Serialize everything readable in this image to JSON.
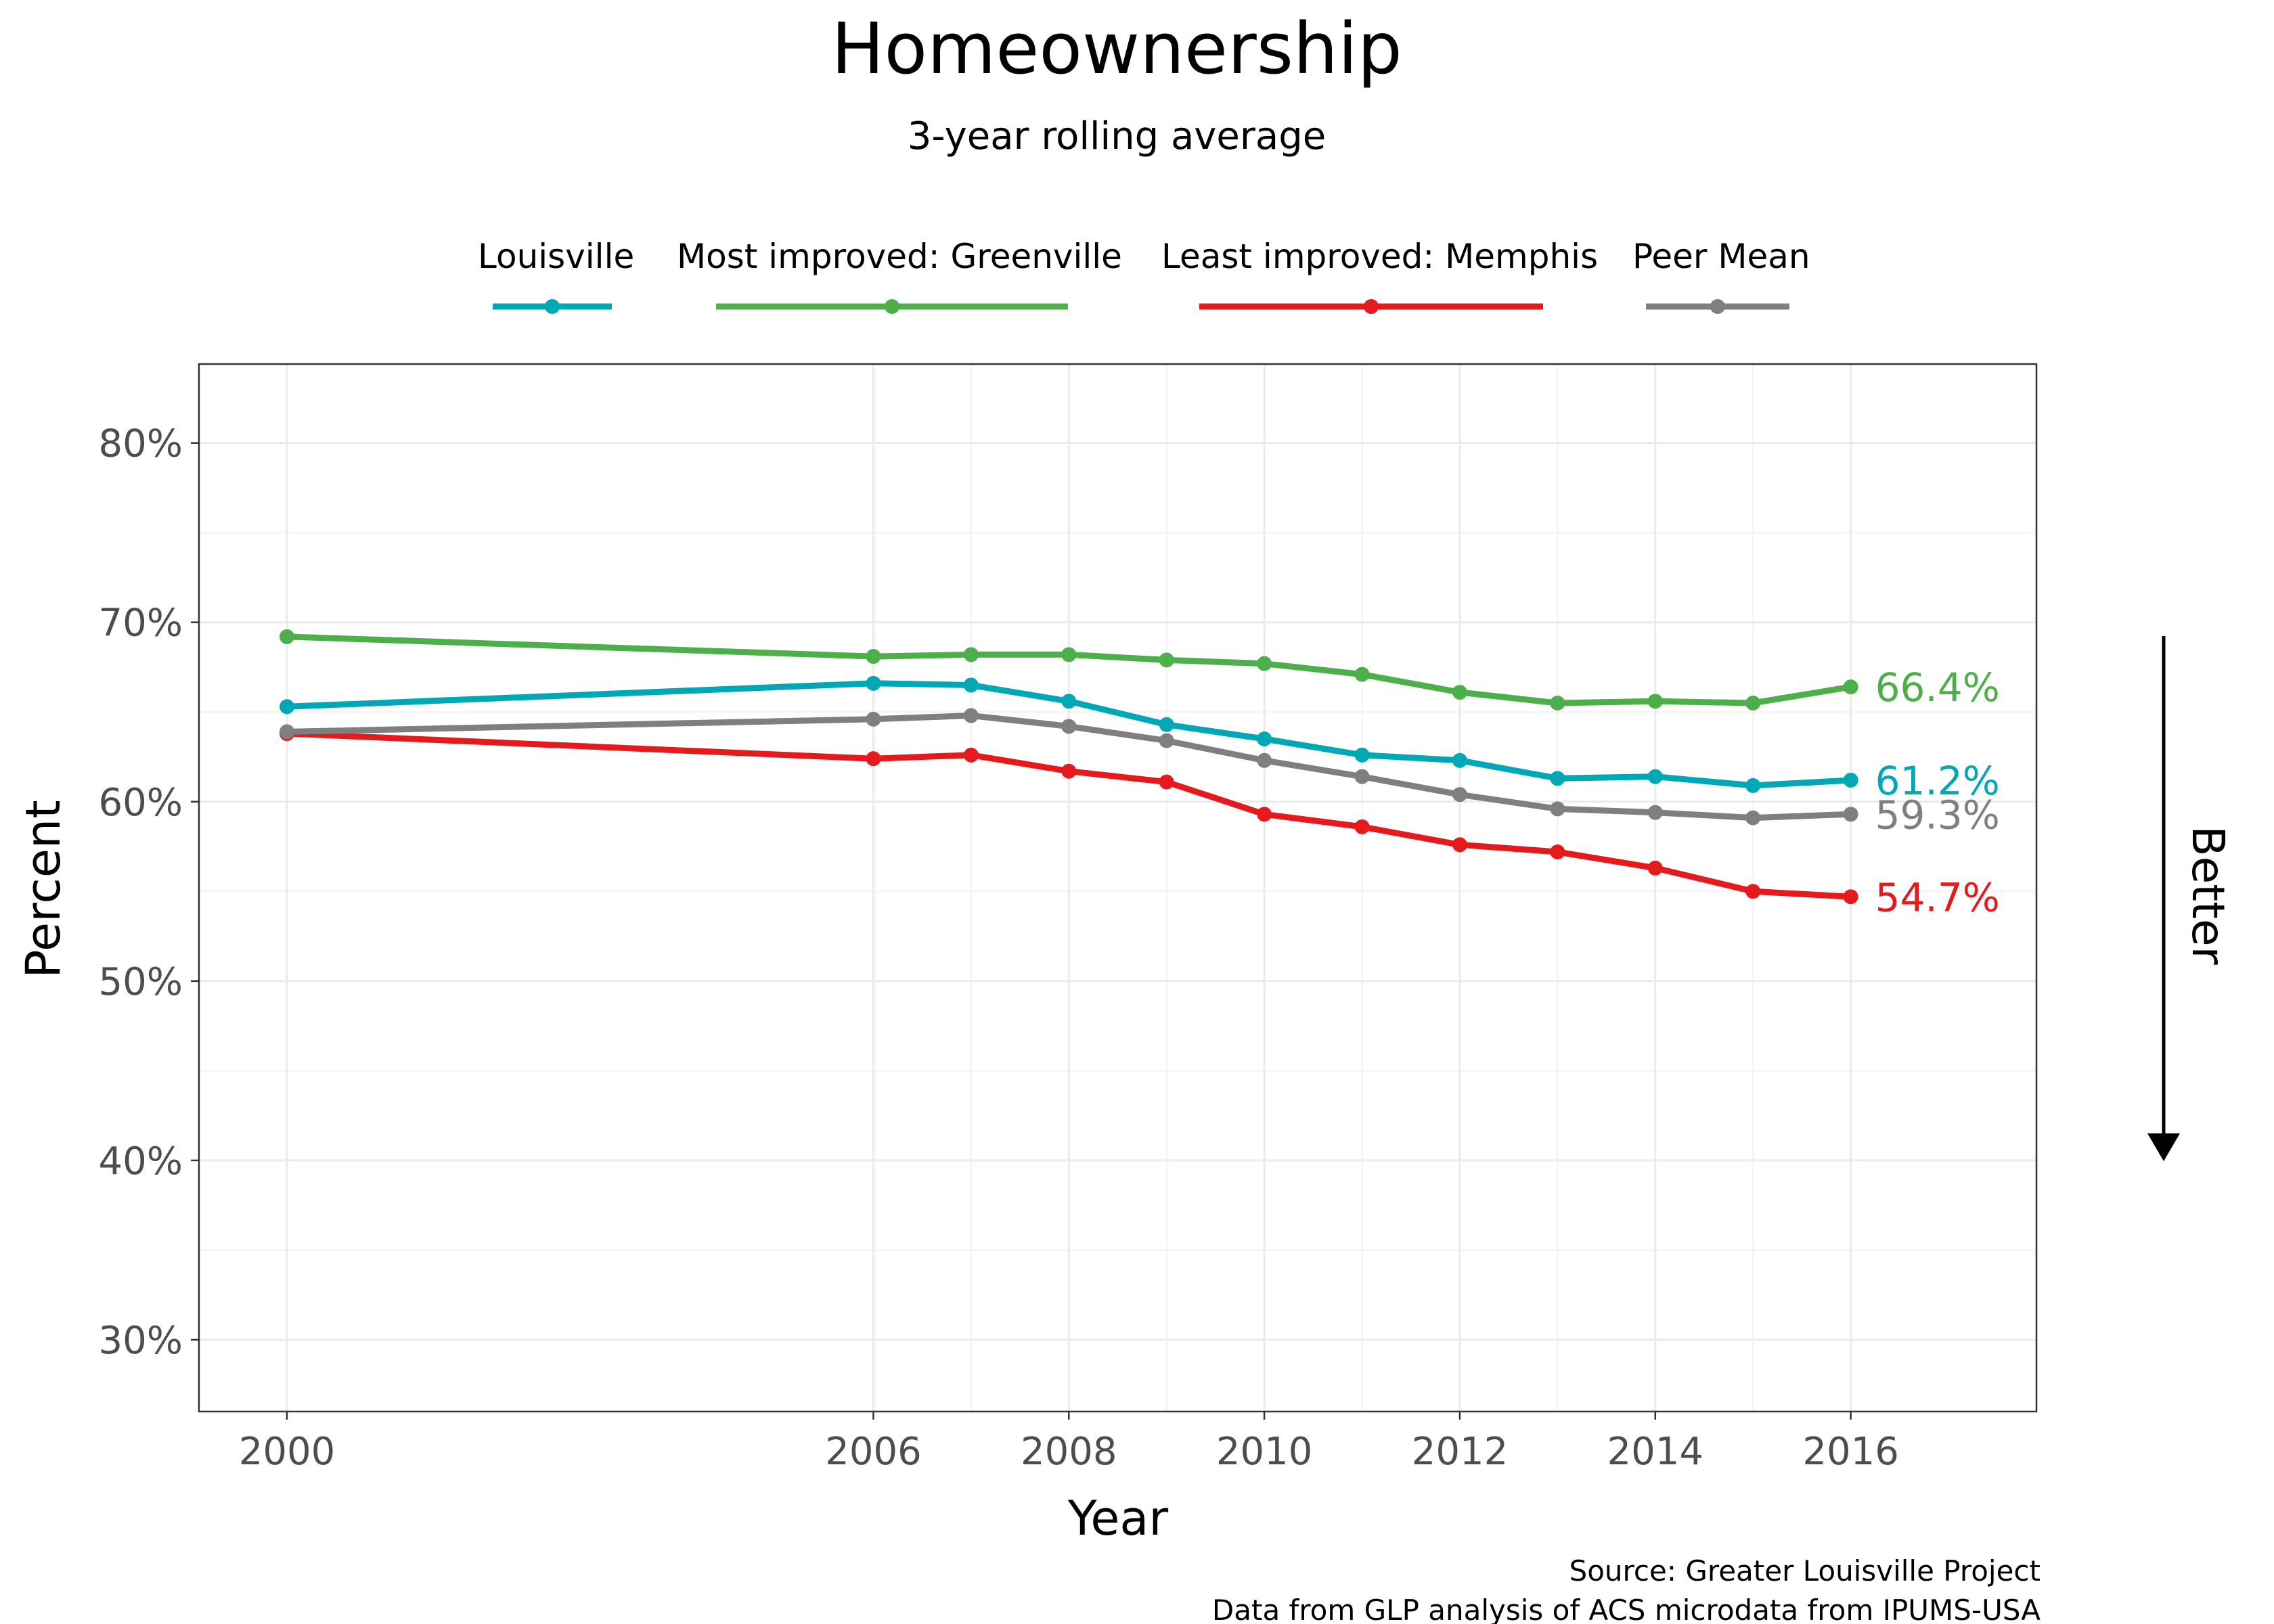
{
  "chart_data": {
    "type": "line",
    "title": "Homeownership",
    "subtitle": "3-year rolling average",
    "xlabel": "Year",
    "ylabel": "Percent",
    "x": [
      2000,
      2006,
      2007,
      2008,
      2009,
      2010,
      2011,
      2012,
      2013,
      2014,
      2015,
      2016
    ],
    "x_ticks": [
      2000,
      2006,
      2008,
      2010,
      2012,
      2014,
      2016
    ],
    "x_tick_labels": [
      "2000",
      "2006",
      "2008",
      "2010",
      "2012",
      "2014",
      "2016"
    ],
    "xlim": [
      1999.1,
      2017.9
    ],
    "y_ticks": [
      30,
      40,
      50,
      60,
      70,
      80
    ],
    "y_tick_labels": [
      "30%",
      "40%",
      "50%",
      "60%",
      "70%",
      "80%"
    ],
    "ylim": [
      26,
      84.4
    ],
    "grid": true,
    "legend_position": "top",
    "series": [
      {
        "name": "Louisville",
        "color": "#00a7b5",
        "values": [
          65.3,
          66.6,
          66.5,
          65.6,
          64.3,
          63.5,
          62.6,
          62.3,
          61.3,
          61.4,
          60.9,
          61.2
        ],
        "end_label": "61.2%"
      },
      {
        "name": "Most improved: Greenville",
        "color": "#4daf4a",
        "values": [
          69.2,
          68.1,
          68.2,
          68.2,
          67.9,
          67.7,
          67.1,
          66.1,
          65.5,
          65.6,
          65.5,
          66.4
        ],
        "end_label": "66.4%"
      },
      {
        "name": "Least improved: Memphis",
        "color": "#e41a1c",
        "values": [
          63.8,
          62.4,
          62.6,
          61.7,
          61.1,
          59.3,
          58.6,
          57.6,
          57.2,
          56.3,
          55.0,
          54.7
        ],
        "end_label": "54.7%"
      },
      {
        "name": "Peer Mean",
        "color": "#7f7f7f",
        "values": [
          63.9,
          64.6,
          64.8,
          64.2,
          63.4,
          62.3,
          61.4,
          60.4,
          59.6,
          59.4,
          59.1,
          59.3
        ],
        "end_label": "59.3%"
      }
    ],
    "annotation": "Better",
    "caption": [
      "Source: Greater Louisville Project",
      "Data from GLP analysis of ACS microdata from IPUMS-USA"
    ]
  }
}
